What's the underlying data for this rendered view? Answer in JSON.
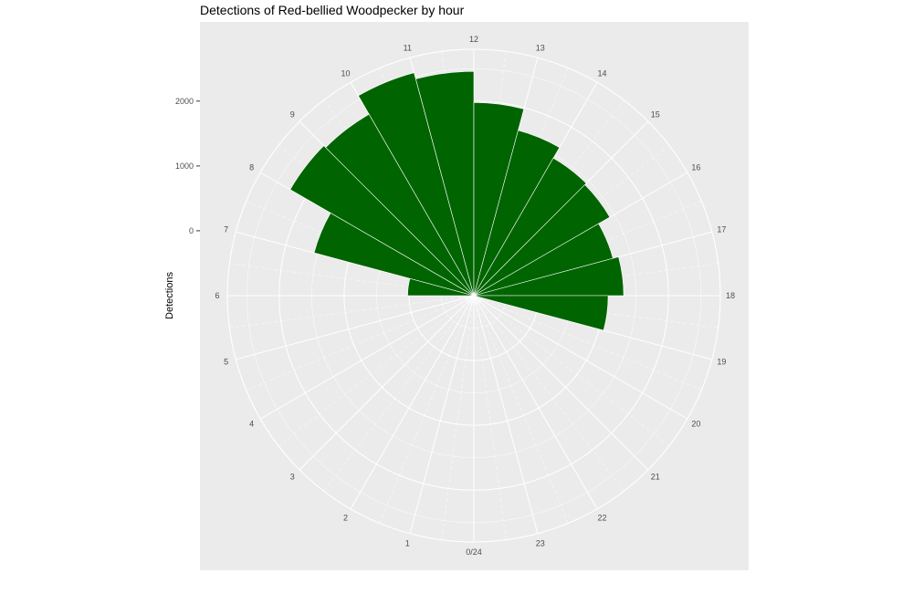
{
  "chart_data": {
    "type": "bar",
    "polar": true,
    "title": "Detections of Red-bellied Woodpecker by hour",
    "xlabel": "",
    "ylabel": "Detections",
    "x_tick_labels": [
      "0/24",
      "1",
      "2",
      "3",
      "4",
      "5",
      "6",
      "7",
      "8",
      "9",
      "10",
      "11",
      "12",
      "13",
      "14",
      "15",
      "16",
      "17",
      "18",
      "19",
      "20",
      "21",
      "22",
      "23"
    ],
    "y_ticks": [
      0,
      1000,
      2000
    ],
    "y_tick_labels": [
      "0",
      "1000",
      "2000"
    ],
    "ylim": [
      -1000,
      2800
    ],
    "series": [
      {
        "hours": [
          6,
          7,
          8,
          9,
          10,
          11,
          12,
          13,
          14,
          15,
          16,
          17,
          18
        ],
        "values": [
          20,
          1550,
          2270,
          2230,
          2560,
          2460,
          1980,
          1640,
          1450,
          1420,
          1220,
          1310,
          1070
        ]
      }
    ],
    "fill_color": "#006400",
    "panel_color": "#ebebeb",
    "grid_color": "#ffffff"
  }
}
